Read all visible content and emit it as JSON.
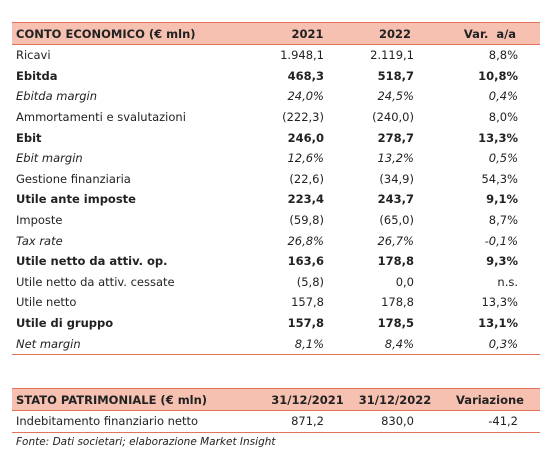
{
  "income_table": {
    "header": [
      "CONTO ECONOMICO (€ mln)",
      "2021",
      "2022",
      "Var.  a/a"
    ],
    "rows": [
      {
        "cells": [
          "Ricavi",
          "1.948,1",
          "2.119,1",
          "8,8%"
        ],
        "style": "normal"
      },
      {
        "cells": [
          "Ebitda",
          "468,3",
          "518,7",
          "10,8%"
        ],
        "style": "bold"
      },
      {
        "cells": [
          "Ebitda margin",
          "24,0%",
          "24,5%",
          "0,4%"
        ],
        "style": "italic"
      },
      {
        "cells": [
          "Ammortamenti e svalutazioni",
          "(222,3)",
          "(240,0)",
          "8,0%"
        ],
        "style": "normal"
      },
      {
        "cells": [
          "Ebit",
          "246,0",
          "278,7",
          "13,3%"
        ],
        "style": "bold"
      },
      {
        "cells": [
          "Ebit margin",
          "12,6%",
          "13,2%",
          "0,5%"
        ],
        "style": "italic"
      },
      {
        "cells": [
          "Gestione finanziaria",
          "(22,6)",
          "(34,9)",
          "54,3%"
        ],
        "style": "normal"
      },
      {
        "cells": [
          "Utile ante imposte",
          "223,4",
          "243,7",
          "9,1%"
        ],
        "style": "bold"
      },
      {
        "cells": [
          "Imposte",
          "(59,8)",
          "(65,0)",
          "8,7%"
        ],
        "style": "normal"
      },
      {
        "cells": [
          "Tax rate",
          "26,8%",
          "26,7%",
          "-0,1%"
        ],
        "style": "italic"
      },
      {
        "cells": [
          "Utile netto da attiv. op.",
          "163,6",
          "178,8",
          "9,3%"
        ],
        "style": "bold"
      },
      {
        "cells": [
          "Utile netto da attiv. cessate",
          "(5,8)",
          "0,0",
          "n.s."
        ],
        "style": "normal"
      },
      {
        "cells": [
          "Utile netto",
          "157,8",
          "178,8",
          "13,3%"
        ],
        "style": "normal"
      },
      {
        "cells": [
          "Utile di gruppo",
          "157,8",
          "178,5",
          "13,1%"
        ],
        "style": "bold"
      },
      {
        "cells": [
          "Net margin",
          "8,1%",
          "8,4%",
          "0,3%"
        ],
        "style": "italic"
      }
    ]
  },
  "balance_table": {
    "header": [
      "STATO PATRIMONIALE (€ mln)",
      "31/12/2021",
      "31/12/2022",
      "Variazione"
    ],
    "rows": [
      {
        "cells": [
          "Indebitamento finanziario netto",
          "871,2",
          "830,0",
          "-41,2"
        ],
        "style": "normal"
      }
    ]
  },
  "footnote": "Fonte: Dati societari; elaborazione Market Insight"
}
